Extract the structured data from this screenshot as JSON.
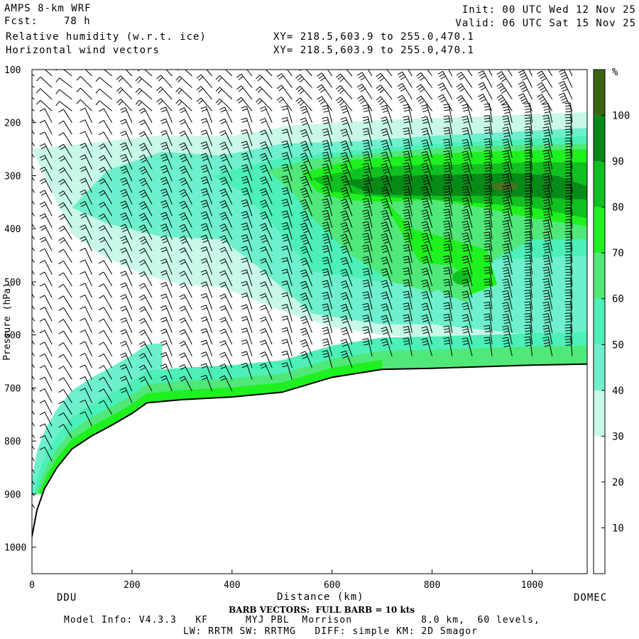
{
  "header": {
    "model": "AMPS 8-km WRF",
    "init": "Init: 00 UTC Wed 12 Nov 25",
    "fcst_label": "Fcst:",
    "fcst_hours": "78 h",
    "valid": "Valid: 06 UTC Sat 15 Nov 25",
    "field1": "Relative humidity (w.r.t. ice)",
    "field2": "Horizontal wind vectors",
    "xy1": "XY= 218.5,603.9 to 255.0,470.1",
    "xy2": "XY= 218.5,603.9 to 255.0,470.1"
  },
  "footer": {
    "endpoint_left": "DDU",
    "endpoint_right": "DOMEC",
    "barb_note": "BARB VECTORS:  FULL BARB = 10 kts",
    "model_info": "Model Info: V4.3.3   KF      MYJ PBL  Morrison           8.0 km,  60 levels,",
    "physics": "LW: RRTM SW: RRTMG   DIFF: simple KM: 2D Smagor"
  },
  "chart_data": {
    "type": "heatmap",
    "title": "Relative humidity (w.r.t. ice) and horizontal wind vectors cross-section",
    "xlabel": "Distance (km)",
    "ylabel": "Pressure (hPa)",
    "xlim": [
      0,
      1110
    ],
    "ylim": [
      1050,
      100
    ],
    "x_ticks": [
      0,
      200,
      400,
      600,
      800,
      1000
    ],
    "y_ticks": [
      100,
      200,
      300,
      400,
      500,
      600,
      700,
      800,
      900,
      1000
    ],
    "colorbar": {
      "unit": "%",
      "levels": [
        0,
        10,
        20,
        30,
        40,
        50,
        60,
        70,
        80,
        90,
        100,
        110
      ],
      "tick_labels": [
        10,
        20,
        30,
        40,
        50,
        60,
        70,
        80,
        90,
        100
      ],
      "colors": [
        "#ffffff",
        "#ffffff",
        "#ffffff",
        "#c8f8e8",
        "#6ef0cc",
        "#4cf0b8",
        "#50e878",
        "#1ff01f",
        "#10c020",
        "#088a18",
        "#3c6410"
      ]
    },
    "terrain_surface": {
      "distance_km": [
        0,
        10,
        25,
        50,
        80,
        120,
        160,
        200,
        230,
        300,
        400,
        500,
        600,
        700,
        800,
        900,
        1000,
        1110
      ],
      "pressure_hpa": [
        980,
        930,
        890,
        850,
        815,
        790,
        770,
        748,
        728,
        722,
        717,
        708,
        680,
        665,
        663,
        660,
        657,
        655
      ]
    },
    "rh_features": [
      {
        "name": "upper moist band",
        "distance_km": [
          100,
          1110
        ],
        "pressure_hpa": [
          200,
          450
        ],
        "rh_max": 95
      },
      {
        "name": "mid-level moist core",
        "distance_km": [
          760,
          950
        ],
        "pressure_hpa": [
          450,
          560
        ],
        "rh_max": 85
      },
      {
        "name": "near-surface moist layer",
        "distance_km": [
          0,
          1110
        ],
        "pressure_hpa": [
          650,
          980
        ],
        "rh_max": 75
      }
    ],
    "barb_units": "kts",
    "barb_columns_km": [
      5,
      40,
      80,
      120,
      160,
      200,
      240,
      280,
      320,
      360,
      400,
      440,
      480,
      520,
      560,
      600,
      640,
      680,
      720,
      760,
      800,
      840,
      880,
      920,
      960,
      1000,
      1040,
      1080
    ]
  }
}
